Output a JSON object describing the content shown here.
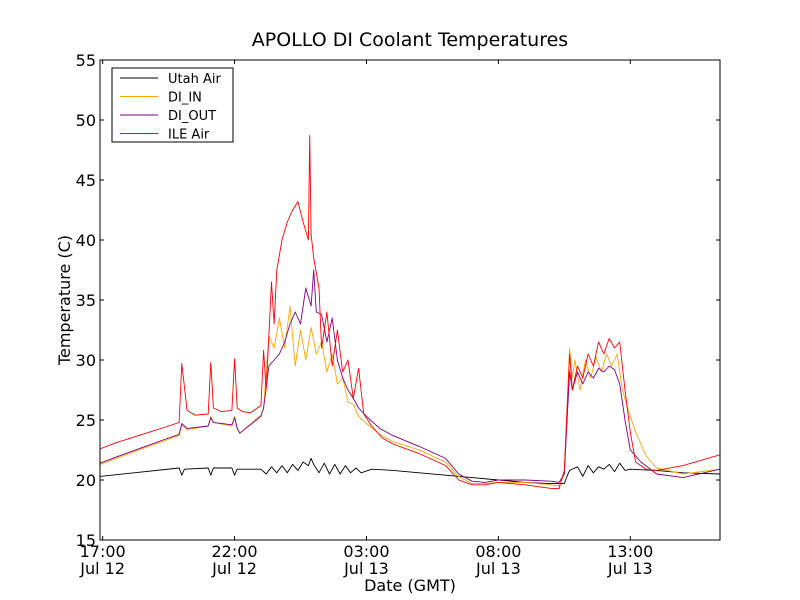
{
  "chart_data": {
    "type": "line",
    "title": "APOLLO DI Coolant Temperatures",
    "xlabel": "Date (GMT)",
    "ylabel": "Temperature (C)",
    "xlim": [
      16.9,
      40.4
    ],
    "ylim": [
      15,
      55
    ],
    "x_unit": "hours since Jul 12 00:00 GMT",
    "yticks": [
      15,
      20,
      25,
      30,
      35,
      40,
      45,
      50,
      55
    ],
    "xticks": [
      {
        "x": 17,
        "time": "17:00",
        "date": "Jul 12"
      },
      {
        "x": 22,
        "time": "22:00",
        "date": "Jul 12"
      },
      {
        "x": 27,
        "time": "03:00",
        "date": "Jul 13"
      },
      {
        "x": 32,
        "time": "08:00",
        "date": "Jul 13"
      },
      {
        "x": 37,
        "time": "13:00",
        "date": "Jul 13"
      }
    ],
    "grid": false,
    "legend": "top-left",
    "series": [
      {
        "name": "Utah Air",
        "color": "#000000",
        "x": [
          16.9,
          19.9,
          20.0,
          20.1,
          21.0,
          21.1,
          21.2,
          21.9,
          22.0,
          22.1,
          23.0,
          23.2,
          23.4,
          23.6,
          23.8,
          24.0,
          24.2,
          24.4,
          24.6,
          24.8,
          24.9,
          25.0,
          25.2,
          25.4,
          25.6,
          25.8,
          26.0,
          26.2,
          26.4,
          26.6,
          26.8,
          27.2,
          28.0,
          29.0,
          30.0,
          31.0,
          32.0,
          33.0,
          34.0,
          34.5,
          34.6,
          34.7,
          35.0,
          35.2,
          35.4,
          35.6,
          35.8,
          36.0,
          36.2,
          36.4,
          36.6,
          36.8,
          37.0,
          38.0,
          39.0,
          40.4
        ],
        "values": [
          20.3,
          21.0,
          20.4,
          20.9,
          21.0,
          20.4,
          21.0,
          21.0,
          20.4,
          20.9,
          20.9,
          20.5,
          21.1,
          20.6,
          21.2,
          20.6,
          21.3,
          20.8,
          21.5,
          21.2,
          21.8,
          21.3,
          20.6,
          21.4,
          20.5,
          21.3,
          20.5,
          21.2,
          20.6,
          21.0,
          20.6,
          20.9,
          20.8,
          20.6,
          20.4,
          20.2,
          20.0,
          19.8,
          19.7,
          19.7,
          20.3,
          20.8,
          21.1,
          20.3,
          21.2,
          20.6,
          21.1,
          20.9,
          21.3,
          20.7,
          21.4,
          20.8,
          20.9,
          20.8,
          20.6,
          20.5
        ]
      },
      {
        "name": "DI_IN",
        "color": "#ffa500",
        "x": [
          16.9,
          17.5,
          18.5,
          19.5,
          19.9,
          20.0,
          20.2,
          21.0,
          21.1,
          21.2,
          21.9,
          22.0,
          22.1,
          22.2,
          23.0,
          23.1,
          23.3,
          23.5,
          23.7,
          23.9,
          24.1,
          24.3,
          24.5,
          24.7,
          24.9,
          25.1,
          25.3,
          25.5,
          25.7,
          25.9,
          26.1,
          26.3,
          26.5,
          26.7,
          27.0,
          27.5,
          28.0,
          29.0,
          30.0,
          30.5,
          31.0,
          31.5,
          32.0,
          33.0,
          34.0,
          34.3,
          34.5,
          34.7,
          34.8,
          34.9,
          35.1,
          35.3,
          35.5,
          35.7,
          35.9,
          36.1,
          36.3,
          36.5,
          36.7,
          36.9,
          37.2,
          37.6,
          38.0,
          39.0,
          40.4
        ],
        "values": [
          21.3,
          21.8,
          22.6,
          23.4,
          23.7,
          24.6,
          24.2,
          24.5,
          25.3,
          24.8,
          24.5,
          25.3,
          24.3,
          23.9,
          25.4,
          26.0,
          32.0,
          31.0,
          33.5,
          31.0,
          34.5,
          29.5,
          32.5,
          30.0,
          32.7,
          30.5,
          31.5,
          29.0,
          30.5,
          28.0,
          28.5,
          26.5,
          26.3,
          25.3,
          24.7,
          23.8,
          23.2,
          22.5,
          21.5,
          20.3,
          19.7,
          19.7,
          19.8,
          19.8,
          19.6,
          19.5,
          20.5,
          31.0,
          28.5,
          30.0,
          27.5,
          30.0,
          28.5,
          30.3,
          29.0,
          30.5,
          29.5,
          30.5,
          27.5,
          26.0,
          24.0,
          22.0,
          21.0,
          20.5,
          20.9
        ]
      },
      {
        "name": "DI_OUT",
        "color": "#800080",
        "x": [
          16.9,
          17.5,
          18.5,
          19.5,
          19.9,
          20.0,
          20.2,
          21.0,
          21.1,
          21.2,
          21.9,
          22.0,
          22.1,
          22.2,
          23.0,
          23.1,
          23.3,
          23.5,
          23.7,
          23.9,
          24.1,
          24.3,
          24.5,
          24.7,
          24.9,
          25.0,
          25.1,
          25.3,
          25.5,
          25.7,
          25.9,
          26.1,
          26.3,
          26.5,
          26.7,
          27.0,
          27.5,
          28.0,
          29.0,
          30.0,
          30.5,
          31.0,
          31.5,
          32.0,
          33.0,
          34.0,
          34.3,
          34.5,
          34.7,
          34.8,
          35.0,
          35.2,
          35.4,
          35.6,
          35.8,
          36.0,
          36.2,
          36.4,
          36.6,
          36.8,
          37.0,
          37.4,
          38.0,
          39.0,
          40.4
        ],
        "values": [
          21.4,
          21.9,
          22.7,
          23.5,
          23.8,
          24.7,
          24.3,
          24.5,
          25.2,
          24.8,
          24.6,
          25.2,
          24.3,
          23.9,
          25.3,
          26.0,
          29.5,
          30.0,
          30.5,
          31.5,
          33.0,
          34.0,
          33.0,
          36.0,
          34.5,
          37.5,
          34.0,
          33.8,
          31.5,
          33.5,
          30.0,
          28.5,
          27.5,
          26.8,
          26.0,
          25.3,
          24.3,
          23.7,
          22.8,
          21.8,
          20.5,
          19.9,
          19.8,
          20.0,
          20.0,
          19.9,
          19.8,
          20.5,
          29.0,
          27.5,
          29.0,
          28.0,
          29.0,
          28.5,
          29.3,
          29.0,
          29.5,
          29.2,
          28.0,
          25.0,
          22.5,
          21.5,
          20.5,
          20.2,
          20.9
        ]
      },
      {
        "name": "ILE Air",
        "color": "#ff0000",
        "x": [
          16.9,
          17.5,
          18.5,
          19.5,
          19.9,
          20.0,
          20.2,
          20.5,
          21.0,
          21.1,
          21.2,
          21.5,
          21.9,
          22.0,
          22.1,
          22.3,
          22.6,
          23.0,
          23.1,
          23.2,
          23.4,
          23.5,
          23.6,
          23.8,
          24.0,
          24.2,
          24.4,
          24.6,
          24.8,
          24.85,
          24.9,
          25.0,
          25.2,
          25.3,
          25.5,
          25.7,
          25.9,
          26.1,
          26.3,
          26.5,
          26.7,
          26.9,
          27.2,
          27.6,
          28.0,
          29.0,
          30.0,
          30.5,
          31.0,
          31.5,
          32.0,
          33.0,
          34.0,
          34.3,
          34.5,
          34.7,
          34.8,
          35.0,
          35.2,
          35.4,
          35.6,
          35.8,
          36.0,
          36.2,
          36.4,
          36.6,
          36.8,
          37.0,
          37.2,
          37.6,
          38.0,
          39.0,
          40.4
        ],
        "values": [
          22.6,
          23.1,
          23.8,
          24.5,
          24.8,
          29.7,
          25.8,
          25.4,
          25.5,
          29.8,
          26.0,
          25.7,
          25.8,
          30.1,
          26.0,
          25.7,
          25.6,
          26.2,
          30.8,
          27.5,
          36.5,
          33.0,
          37.5,
          40.0,
          41.5,
          42.5,
          43.2,
          41.5,
          40.0,
          48.7,
          40.5,
          38.5,
          36.0,
          31.0,
          34.0,
          29.5,
          32.5,
          29.0,
          30.0,
          26.8,
          29.3,
          25.5,
          24.5,
          23.5,
          23.0,
          22.2,
          21.2,
          20.0,
          19.6,
          19.6,
          19.8,
          19.6,
          19.3,
          19.3,
          20.8,
          30.5,
          27.5,
          29.5,
          28.5,
          30.5,
          29.5,
          31.5,
          30.5,
          31.8,
          31.0,
          31.5,
          27.5,
          24.0,
          21.5,
          20.9,
          20.8,
          21.2,
          22.1
        ]
      }
    ]
  }
}
